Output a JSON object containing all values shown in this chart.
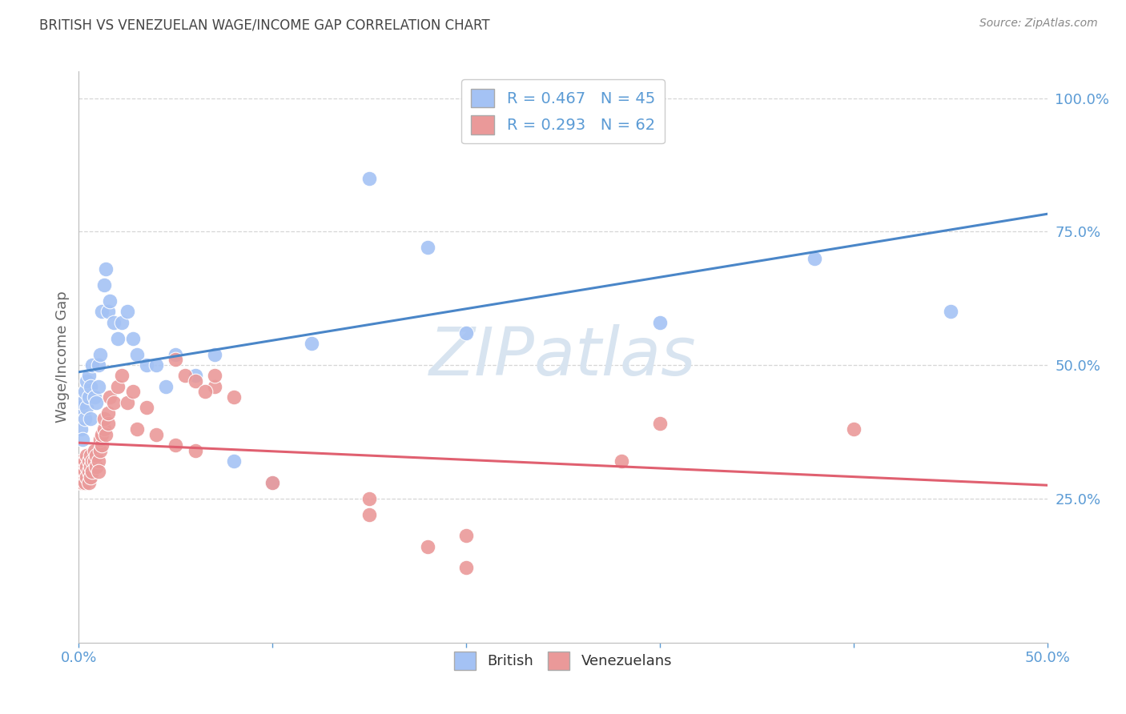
{
  "title": "BRITISH VS VENEZUELAN WAGE/INCOME GAP CORRELATION CHART",
  "source": "Source: ZipAtlas.com",
  "ylabel": "Wage/Income Gap",
  "watermark": "ZIPatlas",
  "british_R": 0.467,
  "british_N": 45,
  "venezuelan_R": 0.293,
  "venezuelan_N": 62,
  "british_color": "#a4c2f4",
  "venezuelan_color": "#ea9999",
  "british_line_color": "#4a86c8",
  "venezuelan_line_color": "#e06070",
  "british_x": [
    0.001,
    0.001,
    0.002,
    0.002,
    0.003,
    0.003,
    0.004,
    0.004,
    0.005,
    0.005,
    0.006,
    0.006,
    0.007,
    0.008,
    0.009,
    0.01,
    0.01,
    0.011,
    0.012,
    0.013,
    0.014,
    0.015,
    0.016,
    0.018,
    0.02,
    0.022,
    0.025,
    0.028,
    0.03,
    0.035,
    0.04,
    0.045,
    0.05,
    0.06,
    0.07,
    0.08,
    0.1,
    0.12,
    0.15,
    0.18,
    0.2,
    0.25,
    0.3,
    0.38,
    0.45
  ],
  "british_y": [
    0.38,
    0.42,
    0.36,
    0.43,
    0.4,
    0.45,
    0.42,
    0.47,
    0.44,
    0.48,
    0.4,
    0.46,
    0.5,
    0.44,
    0.43,
    0.46,
    0.5,
    0.52,
    0.6,
    0.65,
    0.68,
    0.6,
    0.62,
    0.58,
    0.55,
    0.58,
    0.6,
    0.55,
    0.52,
    0.5,
    0.5,
    0.46,
    0.52,
    0.48,
    0.52,
    0.32,
    0.28,
    0.54,
    0.85,
    0.72,
    0.56,
    0.96,
    0.58,
    0.7,
    0.6
  ],
  "venezuelan_x": [
    0.001,
    0.001,
    0.001,
    0.002,
    0.002,
    0.002,
    0.003,
    0.003,
    0.003,
    0.004,
    0.004,
    0.004,
    0.005,
    0.005,
    0.005,
    0.006,
    0.006,
    0.006,
    0.007,
    0.007,
    0.008,
    0.008,
    0.009,
    0.009,
    0.01,
    0.01,
    0.011,
    0.011,
    0.012,
    0.012,
    0.013,
    0.013,
    0.014,
    0.015,
    0.015,
    0.016,
    0.018,
    0.02,
    0.022,
    0.025,
    0.028,
    0.03,
    0.035,
    0.04,
    0.05,
    0.055,
    0.06,
    0.07,
    0.08,
    0.1,
    0.05,
    0.06,
    0.065,
    0.07,
    0.15,
    0.2,
    0.28,
    0.3,
    0.4,
    0.15,
    0.18,
    0.2
  ],
  "venezuelan_y": [
    0.3,
    0.28,
    0.32,
    0.29,
    0.31,
    0.28,
    0.3,
    0.32,
    0.28,
    0.31,
    0.29,
    0.33,
    0.3,
    0.28,
    0.32,
    0.31,
    0.29,
    0.33,
    0.32,
    0.3,
    0.32,
    0.34,
    0.31,
    0.33,
    0.32,
    0.3,
    0.34,
    0.36,
    0.35,
    0.37,
    0.38,
    0.4,
    0.37,
    0.39,
    0.41,
    0.44,
    0.43,
    0.46,
    0.48,
    0.43,
    0.45,
    0.38,
    0.42,
    0.37,
    0.51,
    0.48,
    0.47,
    0.46,
    0.44,
    0.28,
    0.35,
    0.34,
    0.45,
    0.48,
    0.25,
    0.18,
    0.32,
    0.39,
    0.38,
    0.22,
    0.16,
    0.12
  ],
  "xlim": [
    0.0,
    0.5
  ],
  "ylim": [
    -0.02,
    1.05
  ],
  "yticks": [
    0.25,
    0.5,
    0.75,
    1.0
  ],
  "ytick_labels": [
    "25.0%",
    "50.0%",
    "75.0%",
    "100.0%"
  ],
  "background_color": "#ffffff",
  "grid_color": "#cccccc",
  "axis_color": "#5b9bd5",
  "title_color": "#444444",
  "source_color": "#888888",
  "watermark_color": "#d8e4f0"
}
